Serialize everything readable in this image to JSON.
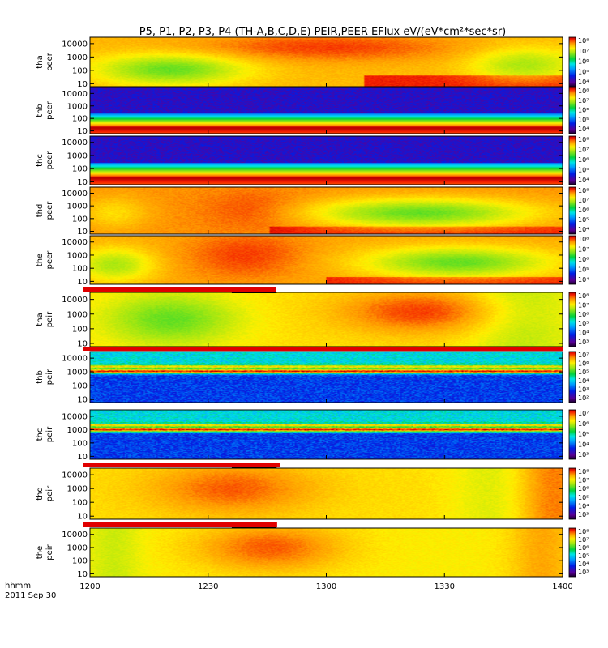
{
  "chart_data": {
    "type": "heatmap",
    "title": "P5, P1, P2, P3, P4 (TH-A,B,C,D,E) PEIR,PEER EFlux eV/(eV*cm²*sec*sr)",
    "x_axis": {
      "label": "hhmm",
      "date": "2011 Sep 30",
      "ticks": [
        "1200",
        "1230",
        "1300",
        "1330",
        "1400"
      ],
      "range": [
        "1200",
        "1400"
      ]
    },
    "colorscale": "rainbow (purple-blue-cyan-green-yellow-red)",
    "panels": [
      {
        "probe": "tha",
        "species": "peer",
        "y_ticks": [
          "10",
          "100",
          "1000",
          "10000"
        ],
        "y_range": [
          6,
          30000
        ],
        "y_scale": "log",
        "cbar_ticks": [
          "10⁸",
          "10⁷",
          "10⁶",
          "10⁵",
          "10⁴"
        ],
        "cbar_range": [
          "10³",
          "10⁸"
        ],
        "pattern": "electron_tha"
      },
      {
        "probe": "thb",
        "species": "peer",
        "y_ticks": [
          "10",
          "100",
          "1000",
          "10000"
        ],
        "y_range": [
          6,
          30000
        ],
        "y_scale": "log",
        "cbar_ticks": [
          "10⁸",
          "10⁷",
          "10⁶",
          "10⁵",
          "10⁴"
        ],
        "cbar_range": [
          "10³",
          "10⁸"
        ],
        "pattern": "solarwind_e",
        "band_center": 1.85
      },
      {
        "probe": "thc",
        "species": "peer",
        "y_ticks": [
          "10",
          "100",
          "1000",
          "10000"
        ],
        "y_range": [
          6,
          30000
        ],
        "y_scale": "log",
        "cbar_ticks": [
          "10⁸",
          "10⁷",
          "10⁶",
          "10⁵",
          "10⁴"
        ],
        "cbar_range": [
          "10³",
          "10⁸"
        ],
        "pattern": "solarwind_e",
        "band_center": 1.9
      },
      {
        "probe": "thd",
        "species": "peer",
        "y_ticks": [
          "10",
          "100",
          "1000",
          "10000"
        ],
        "y_range": [
          6,
          30000
        ],
        "y_scale": "log",
        "cbar_ticks": [
          "10⁸",
          "10⁷",
          "10⁶",
          "10⁵",
          "10⁴"
        ],
        "cbar_range": [
          "10³",
          "10⁸"
        ],
        "pattern": "electron_thd"
      },
      {
        "probe": "the",
        "species": "peer",
        "y_ticks": [
          "10",
          "100",
          "1000",
          "10000"
        ],
        "y_range": [
          6,
          30000
        ],
        "y_scale": "log",
        "cbar_ticks": [
          "10⁸",
          "10⁷",
          "10⁶",
          "10⁵",
          "10⁴"
        ],
        "cbar_range": [
          "10³",
          "10⁸"
        ],
        "pattern": "electron_the"
      },
      {
        "probe": "tha",
        "species": "peir",
        "y_ticks": [
          "10",
          "100",
          "1000",
          "10000"
        ],
        "y_range": [
          6,
          30000
        ],
        "y_scale": "log",
        "cbar_ticks": [
          "10⁸",
          "10⁷",
          "10⁶",
          "10⁵",
          "10⁴",
          "10³"
        ],
        "cbar_range": [
          "10³",
          "10⁸"
        ],
        "pattern": "ion_tha"
      },
      {
        "probe": "thb",
        "species": "peir",
        "y_ticks": [
          "10",
          "100",
          "1000",
          "10000"
        ],
        "y_range": [
          6,
          30000
        ],
        "y_scale": "log",
        "cbar_ticks": [
          "10⁷",
          "10⁶",
          "10⁵",
          "10⁴",
          "10³",
          "10²"
        ],
        "cbar_range": [
          "10²",
          "10⁷"
        ],
        "pattern": "solarwind_i",
        "band_center": 3.05
      },
      {
        "probe": "thc",
        "species": "peir",
        "y_ticks": [
          "10",
          "100",
          "1000",
          "10000"
        ],
        "y_range": [
          6,
          30000
        ],
        "y_scale": "log",
        "cbar_ticks": [
          "10⁷",
          "10⁶",
          "10⁵",
          "10⁴",
          "10³"
        ],
        "cbar_range": [
          "10²",
          "10⁷"
        ],
        "pattern": "solarwind_i",
        "band_center": 3.0
      },
      {
        "probe": "thd",
        "species": "peir",
        "y_ticks": [
          "10",
          "100",
          "1000",
          "10000"
        ],
        "y_range": [
          6,
          30000
        ],
        "y_scale": "log",
        "cbar_ticks": [
          "10⁸",
          "10⁷",
          "10⁶",
          "10⁵",
          "10⁴",
          "10³"
        ],
        "cbar_range": [
          "10³",
          "10⁸"
        ],
        "pattern": "ion_thd"
      },
      {
        "probe": "the",
        "species": "peir",
        "y_ticks": [
          "10",
          "100",
          "1000",
          "10000"
        ],
        "y_range": [
          6,
          30000
        ],
        "y_scale": "log",
        "cbar_ticks": [
          "10⁸",
          "10⁷",
          "10⁶",
          "10⁵",
          "10⁴",
          "10³"
        ],
        "cbar_range": [
          "10³",
          "10⁸"
        ],
        "pattern": "ion_the"
      }
    ]
  },
  "colors": {
    "marker_red": "#e00000",
    "marker_black": "#000000"
  }
}
